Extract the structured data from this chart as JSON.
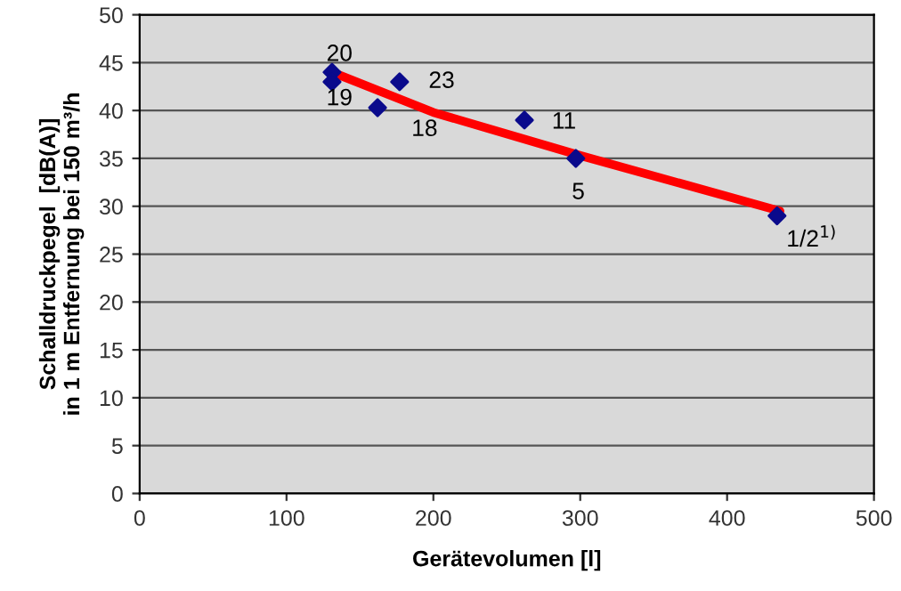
{
  "chart_data": {
    "type": "scatter",
    "xlabel": "Gerätevolumen [l]",
    "ylabel": "Schalldruckpegel  [dB(A)]\nin 1 m Entfernung bei 150 m³/h",
    "xlim": [
      0,
      500
    ],
    "ylim": [
      0,
      50
    ],
    "xticks": [
      0,
      100,
      200,
      300,
      400,
      500
    ],
    "yticks": [
      0,
      5,
      10,
      15,
      20,
      25,
      30,
      35,
      40,
      45,
      50
    ],
    "grid": "y",
    "marker": "diamond",
    "legend": false,
    "series": [
      {
        "color": "#0a0a8c",
        "x": [
          131,
          131,
          162,
          177,
          262,
          297,
          434
        ],
        "values": [
          44,
          43,
          40.3,
          43,
          39,
          35,
          29
        ]
      },
      {
        "type": "line",
        "color": "#ff0000",
        "marker": "none",
        "line_style": "solid",
        "x": [
          131,
          200,
          300,
          436
        ],
        "values": [
          44,
          39.8,
          35.3,
          29.5
        ]
      }
    ],
    "annotations": [
      {
        "text": "20",
        "x": 131,
        "y": 44
      },
      {
        "text": "19",
        "x": 131,
        "y": 43
      },
      {
        "text": "18",
        "x": 162,
        "y": 40.3
      },
      {
        "text": "23",
        "x": 177,
        "y": 43
      },
      {
        "text": "11",
        "x": 262,
        "y": 39
      },
      {
        "text": "5",
        "x": 297,
        "y": 35
      },
      {
        "text": "1/2$^{1)}$",
        "x": 434,
        "y": 29
      }
    ]
  }
}
